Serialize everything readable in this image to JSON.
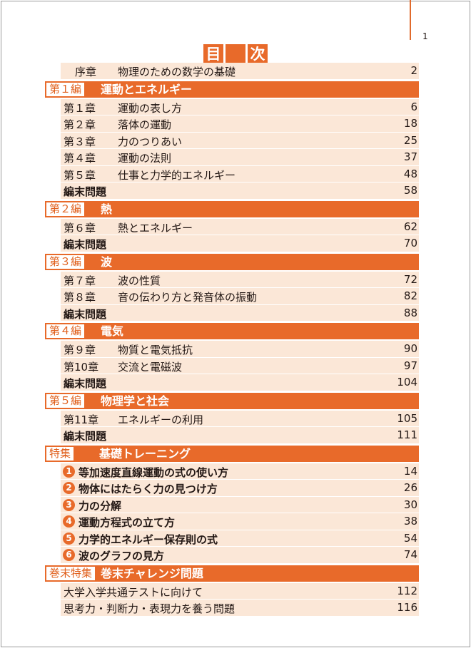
{
  "page_number": "1",
  "title": {
    "left": "目",
    "right": "次"
  },
  "prologue": {
    "num": "序章",
    "title": "物理のための数学の基礎",
    "page": "2"
  },
  "sections": [
    {
      "label": "第１編",
      "title": "運動とエネルギー",
      "chapters": [
        {
          "num": "第１章",
          "title": "運動の表し方",
          "page": "6"
        },
        {
          "num": "第２章",
          "title": "落体の運動",
          "page": "18"
        },
        {
          "num": "第３章",
          "title": "力のつりあい",
          "page": "25"
        },
        {
          "num": "第４章",
          "title": "運動の法則",
          "page": "37"
        },
        {
          "num": "第５章",
          "title": "仕事と力学的エネルギー",
          "page": "48"
        }
      ],
      "review": {
        "title": "編末問題",
        "page": "58"
      }
    },
    {
      "label": "第２編",
      "title": "熱",
      "chapters": [
        {
          "num": "第６章",
          "title": "熱とエネルギー",
          "page": "62"
        }
      ],
      "review": {
        "title": "編末問題",
        "page": "70"
      }
    },
    {
      "label": "第３編",
      "title": "波",
      "chapters": [
        {
          "num": "第７章",
          "title": "波の性質",
          "page": "72"
        },
        {
          "num": "第８章",
          "title": "音の伝わり方と発音体の振動",
          "page": "82"
        }
      ],
      "review": {
        "title": "編末問題",
        "page": "88"
      }
    },
    {
      "label": "第４編",
      "title": "電気",
      "chapters": [
        {
          "num": "第９章",
          "title": "物質と電気抵抗",
          "page": "90"
        },
        {
          "num": "第10章",
          "title": "交流と電磁波",
          "page": "97"
        }
      ],
      "review": {
        "title": "編末問題",
        "page": "104"
      }
    },
    {
      "label": "第５編",
      "title": "物理学と社会",
      "chapters": [
        {
          "num": "第11章",
          "title": "エネルギーの利用",
          "page": "105"
        }
      ],
      "review": {
        "title": "編末問題",
        "page": "111"
      }
    }
  ],
  "special": {
    "label": "特集",
    "title": "基礎トレーニング",
    "items": [
      {
        "n": "1",
        "title": "等加速度直線運動の式の使い方",
        "page": "14"
      },
      {
        "n": "2",
        "title": "物体にはたらく力の見つけ方",
        "page": "26"
      },
      {
        "n": "3",
        "title": "力の分解",
        "page": "30"
      },
      {
        "n": "4",
        "title": "運動方程式の立て方",
        "page": "38"
      },
      {
        "n": "5",
        "title": "力学的エネルギー保存則の式",
        "page": "54"
      },
      {
        "n": "6",
        "title": "波のグラフの見方",
        "page": "74"
      }
    ]
  },
  "final": {
    "label": "巻末特集",
    "title": "巻末チャレンジ問題",
    "items": [
      {
        "title": "大学入学共通テストに向けて",
        "page": "112"
      },
      {
        "title": "思考力・判断力・表現力を養う問題",
        "page": "116"
      }
    ]
  }
}
